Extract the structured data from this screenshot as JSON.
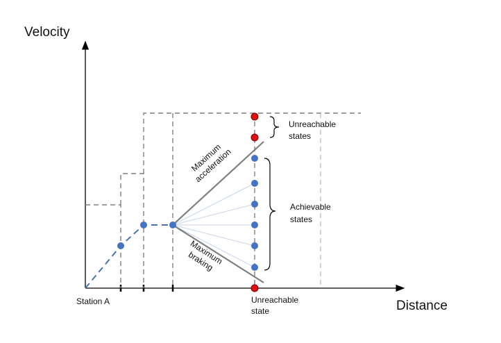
{
  "diagram": {
    "axis_labels": {
      "y": "Velocity",
      "x": "Distance"
    },
    "labels": {
      "station_a": "Station A",
      "unreachable_state": [
        "Unreachable",
        "state"
      ],
      "unreachable_states": [
        "Unreachable",
        "states"
      ],
      "achievable_states": [
        "Achievable",
        "states"
      ],
      "max_acceleration": [
        "Maximum",
        "acceleration"
      ],
      "max_braking": [
        "Maximum",
        "braking"
      ]
    },
    "colors": {
      "axis": "#000000",
      "trajectory": "#4a72b0",
      "dashed_limits": "#7f7f7f",
      "envelope": "#7f7f7f",
      "fan": "#c9d3e6",
      "achievable_node": "#4472c4",
      "unreachable_node": "#e01010"
    },
    "node_groups": {
      "trajectory_nodes": 3,
      "achievable_nodes": 6,
      "unreachable_nodes": 3
    }
  }
}
